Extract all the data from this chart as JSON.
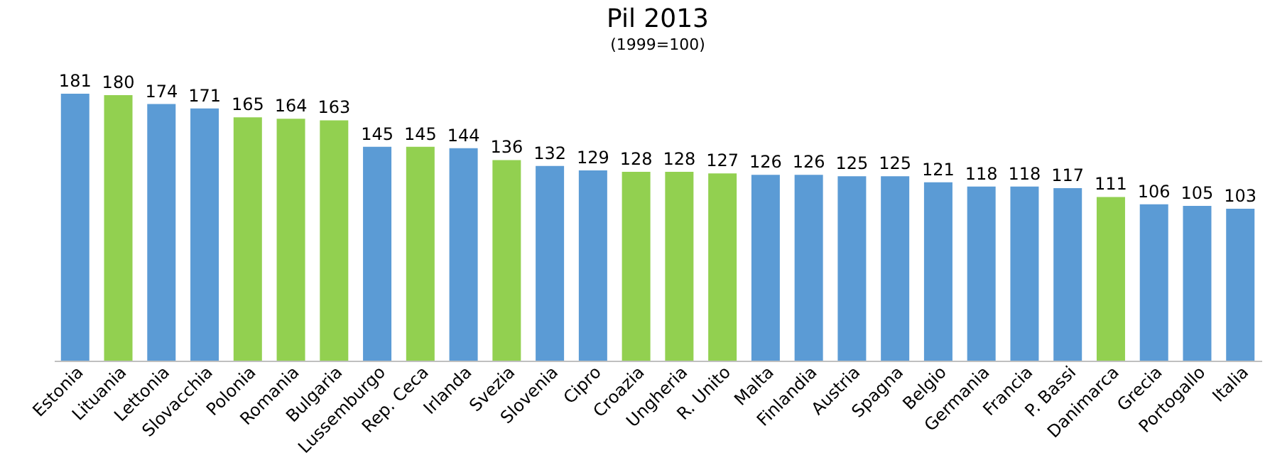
{
  "chart_data": {
    "type": "bar",
    "title": "Pil 2013",
    "subtitle": "(1999=100)",
    "categories": [
      "Estonia",
      "Lituania",
      "Lettonia",
      "Slovacchia",
      "Polonia",
      "Romania",
      "Bulgaria",
      "Lussemburgo",
      "Rep. Ceca",
      "Irlanda",
      "Svezia",
      "Slovenia",
      "Cipro",
      "Croazia",
      "Ungheria",
      "R. Unito",
      "Malta",
      "Finlandia",
      "Austria",
      "Spagna",
      "Belgio",
      "Germania",
      "Francia",
      "P. Bassi",
      "Danimarca",
      "Grecia",
      "Portogallo",
      "Italia"
    ],
    "values": [
      181,
      180,
      174,
      171,
      165,
      164,
      163,
      145,
      145,
      144,
      136,
      132,
      129,
      128,
      128,
      127,
      126,
      126,
      125,
      125,
      121,
      118,
      118,
      117,
      111,
      106,
      105,
      103
    ],
    "colors": [
      "#5b9bd5",
      "#92d050",
      "#5b9bd5",
      "#5b9bd5",
      "#92d050",
      "#92d050",
      "#92d050",
      "#5b9bd5",
      "#92d050",
      "#5b9bd5",
      "#92d050",
      "#5b9bd5",
      "#5b9bd5",
      "#92d050",
      "#92d050",
      "#92d050",
      "#5b9bd5",
      "#5b9bd5",
      "#5b9bd5",
      "#5b9bd5",
      "#5b9bd5",
      "#5b9bd5",
      "#5b9bd5",
      "#5b9bd5",
      "#92d050",
      "#5b9bd5",
      "#5b9bd5",
      "#5b9bd5"
    ],
    "data_labels": true,
    "tick_labels": "x",
    "grid": false
  }
}
